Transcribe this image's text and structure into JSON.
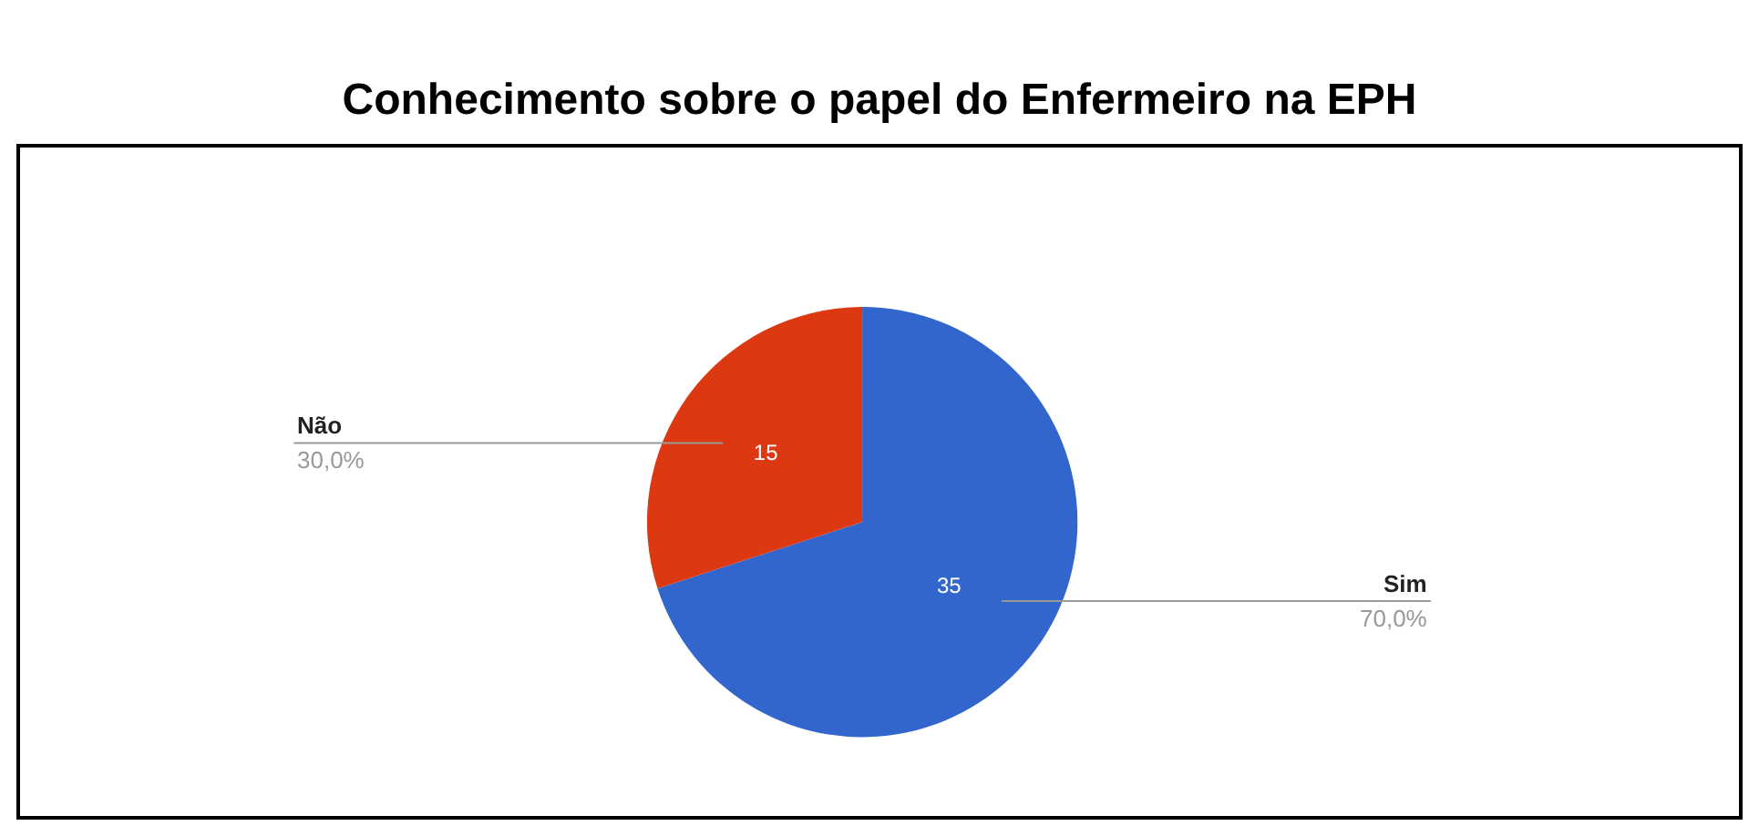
{
  "chart_data": {
    "type": "pie",
    "title": "Conhecimento sobre o papel do Enfermeiro na EPH",
    "categories": [
      "Sim",
      "Não"
    ],
    "values": [
      35,
      15
    ],
    "colors": [
      "#3366cc",
      "#dc3912"
    ],
    "data_labels": true,
    "annotations": [
      "70,0%",
      "30,0%"
    ],
    "legend": false
  }
}
